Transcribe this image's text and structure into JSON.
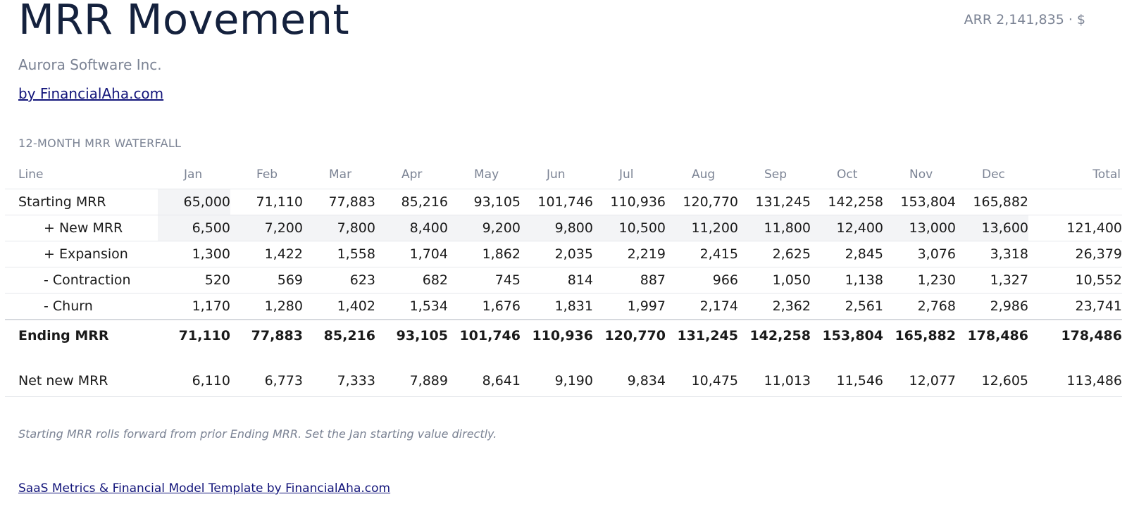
{
  "header": {
    "title": "MRR Movement",
    "subtitle": "Aurora Software Inc.",
    "byline": "by FinancialAha.com",
    "arr_summary": "ARR 2,141,835 · $"
  },
  "section": {
    "label": "12-MONTH MRR WATERFALL"
  },
  "table": {
    "line_header": "Line",
    "months": [
      "Jan",
      "Feb",
      "Mar",
      "Apr",
      "May",
      "Jun",
      "Jul",
      "Aug",
      "Sep",
      "Oct",
      "Nov",
      "Dec"
    ],
    "total_header": "Total",
    "rows": [
      {
        "label": "Starting MRR",
        "values": [
          "65,000",
          "71,110",
          "77,883",
          "85,216",
          "93,105",
          "101,746",
          "110,936",
          "120,770",
          "131,245",
          "142,258",
          "153,804",
          "165,882"
        ],
        "total": ""
      },
      {
        "label": "+ New MRR",
        "values": [
          "6,500",
          "7,200",
          "7,800",
          "8,400",
          "9,200",
          "9,800",
          "10,500",
          "11,200",
          "11,800",
          "12,400",
          "13,000",
          "13,600"
        ],
        "total": "121,400"
      },
      {
        "label": "+ Expansion",
        "values": [
          "1,300",
          "1,422",
          "1,558",
          "1,704",
          "1,862",
          "2,035",
          "2,219",
          "2,415",
          "2,625",
          "2,845",
          "3,076",
          "3,318"
        ],
        "total": "26,379"
      },
      {
        "label": "- Contraction",
        "values": [
          "520",
          "569",
          "623",
          "682",
          "745",
          "814",
          "887",
          "966",
          "1,050",
          "1,138",
          "1,230",
          "1,327"
        ],
        "total": "10,552"
      },
      {
        "label": "- Churn",
        "values": [
          "1,170",
          "1,280",
          "1,402",
          "1,534",
          "1,676",
          "1,831",
          "1,997",
          "2,174",
          "2,362",
          "2,561",
          "2,768",
          "2,986"
        ],
        "total": "23,741"
      },
      {
        "label": "Ending MRR",
        "values": [
          "71,110",
          "77,883",
          "85,216",
          "93,105",
          "101,746",
          "110,936",
          "120,770",
          "131,245",
          "142,258",
          "153,804",
          "165,882",
          "178,486"
        ],
        "total": "178,486"
      },
      {
        "label": "Net new MRR",
        "values": [
          "6,110",
          "6,773",
          "7,333",
          "7,889",
          "8,641",
          "9,190",
          "9,834",
          "10,475",
          "11,013",
          "11,546",
          "12,077",
          "12,605"
        ],
        "total": "113,486"
      }
    ]
  },
  "note": "Starting MRR rolls forward from prior Ending MRR. Set the Jan starting value directly.",
  "footer": {
    "link_label": "SaaS Metrics & Financial Model Template by FinancialAha.com"
  },
  "colors": {
    "accent": "#14213d",
    "link": "#12147a",
    "muted": "#7b8394",
    "input_highlight": "#f3f4f6"
  }
}
